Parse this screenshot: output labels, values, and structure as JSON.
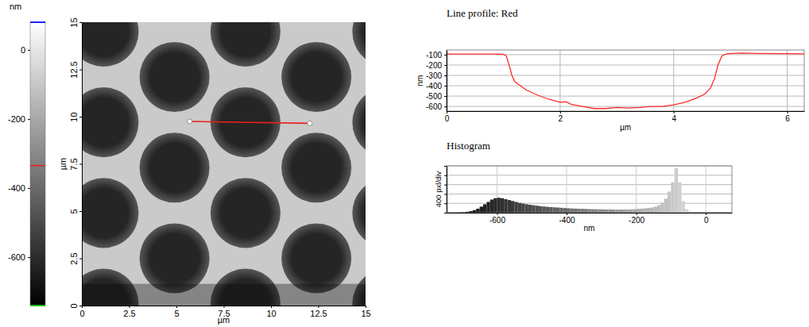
{
  "chart_data": [
    {
      "type": "image",
      "xlabel": "µm",
      "ylabel": "µm",
      "xlim": [
        0,
        15
      ],
      "ylim": [
        0,
        15
      ],
      "xticks": [
        0,
        2.5,
        5,
        7.5,
        10,
        12.5,
        15
      ],
      "yticks": [
        0,
        2.5,
        5,
        7.5,
        10,
        12.5,
        15
      ],
      "color_title": "nm",
      "color_range": [
        -740,
        80
      ],
      "color_ticks": [
        0,
        -200,
        -400,
        -600
      ],
      "color_cursor": -335,
      "surface": -90,
      "holes": {
        "x": [
          1.15,
          1.15,
          1.15,
          1.15,
          4.9,
          4.9,
          4.9,
          8.65,
          8.65,
          8.65,
          8.65,
          12.4,
          12.4,
          12.4,
          16.15,
          16.15,
          16.15,
          16.15
        ],
        "y": [
          14.5,
          9.7,
          4.9,
          0.1,
          12.1,
          7.3,
          2.5,
          14.5,
          9.7,
          4.9,
          0.1,
          12.1,
          7.3,
          2.5,
          14.5,
          9.7,
          4.9,
          0.1
        ],
        "radius": [
          1.85,
          1.85,
          1.85,
          1.85,
          1.85,
          1.85,
          1.85,
          1.85,
          1.85,
          1.85,
          1.85,
          1.85,
          1.85,
          1.85,
          1.85,
          1.85,
          1.85,
          1.85
        ],
        "depth": [
          -620,
          -620,
          -620,
          -620,
          -620,
          -620,
          -620,
          -620,
          -620,
          -620,
          -620,
          -620,
          -620,
          -620,
          -620,
          -620,
          -620,
          -620
        ]
      },
      "band": {
        "y": [
          0,
          1.15
        ],
        "surface": -200
      },
      "profile": {
        "x": [
          5.7,
          12.05
        ],
        "y": [
          9.75,
          9.65
        ],
        "color": "#e8211c"
      }
    },
    {
      "type": "line",
      "title": "Line profile: Red",
      "xlabel": "µm",
      "ylabel": "nm",
      "xlim": [
        0,
        6.3
      ],
      "ylim": [
        -645,
        -55
      ],
      "xticks": [
        0,
        2,
        4,
        6
      ],
      "yticks": [
        -100,
        -200,
        -300,
        -400,
        -500,
        -600
      ],
      "grid": true,
      "color": "#ff2a2a",
      "x": [
        0,
        0.5,
        0.8,
        1.0,
        1.05,
        1.1,
        1.15,
        1.2,
        1.3,
        1.4,
        1.6,
        1.8,
        2.0,
        2.1,
        2.2,
        2.4,
        2.6,
        2.8,
        3.0,
        3.2,
        3.4,
        3.6,
        3.8,
        4.0,
        4.2,
        4.4,
        4.55,
        4.65,
        4.72,
        4.78,
        4.85,
        4.95,
        5.2,
        5.5,
        6.0,
        6.3
      ],
      "values": [
        -95,
        -95,
        -95,
        -97,
        -110,
        -200,
        -300,
        -360,
        -400,
        -440,
        -490,
        -530,
        -560,
        -555,
        -580,
        -600,
        -620,
        -620,
        -610,
        -615,
        -610,
        -600,
        -600,
        -585,
        -560,
        -520,
        -480,
        -420,
        -330,
        -200,
        -110,
        -90,
        -85,
        -88,
        -90,
        -92
      ]
    },
    {
      "type": "histogram",
      "title": "Histogram",
      "xlabel": "nm",
      "ylabel": "400 pxl/div",
      "xlim": [
        -745,
        75
      ],
      "ylim": [
        0,
        2000
      ],
      "xticks": [
        -600,
        -400,
        -200,
        0
      ],
      "yticks": [
        0,
        400,
        800,
        1200,
        1600,
        2000
      ],
      "grid": true,
      "tick_labels": "x",
      "bins": [
        -740,
        -730,
        -720,
        -710,
        -700,
        -690,
        -680,
        -670,
        -660,
        -650,
        -640,
        -630,
        -620,
        -610,
        -600,
        -590,
        -580,
        -570,
        -560,
        -550,
        -540,
        -530,
        -520,
        -510,
        -500,
        -490,
        -480,
        -470,
        -460,
        -450,
        -440,
        -430,
        -420,
        -410,
        -400,
        -390,
        -380,
        -370,
        -360,
        -350,
        -340,
        -330,
        -320,
        -310,
        -300,
        -290,
        -280,
        -270,
        -260,
        -250,
        -240,
        -230,
        -220,
        -210,
        -200,
        -190,
        -180,
        -170,
        -160,
        -150,
        -140,
        -130,
        -120,
        -110,
        -100,
        -90,
        -80,
        -70,
        -60,
        -50,
        -40,
        -30,
        -20,
        -10,
        0,
        10,
        20
      ],
      "values": [
        0,
        0,
        5,
        10,
        20,
        40,
        70,
        110,
        170,
        260,
        360,
        460,
        560,
        620,
        640,
        620,
        580,
        540,
        500,
        460,
        420,
        390,
        360,
        340,
        320,
        300,
        280,
        265,
        250,
        240,
        230,
        220,
        210,
        200,
        190,
        180,
        175,
        170,
        165,
        160,
        155,
        150,
        148,
        145,
        142,
        140,
        138,
        136,
        135,
        135,
        138,
        140,
        145,
        150,
        160,
        170,
        185,
        200,
        220,
        260,
        320,
        420,
        600,
        900,
        1300,
        1900,
        1300,
        500,
        150,
        60,
        30,
        15,
        10,
        8,
        5,
        3
      ]
    }
  ]
}
